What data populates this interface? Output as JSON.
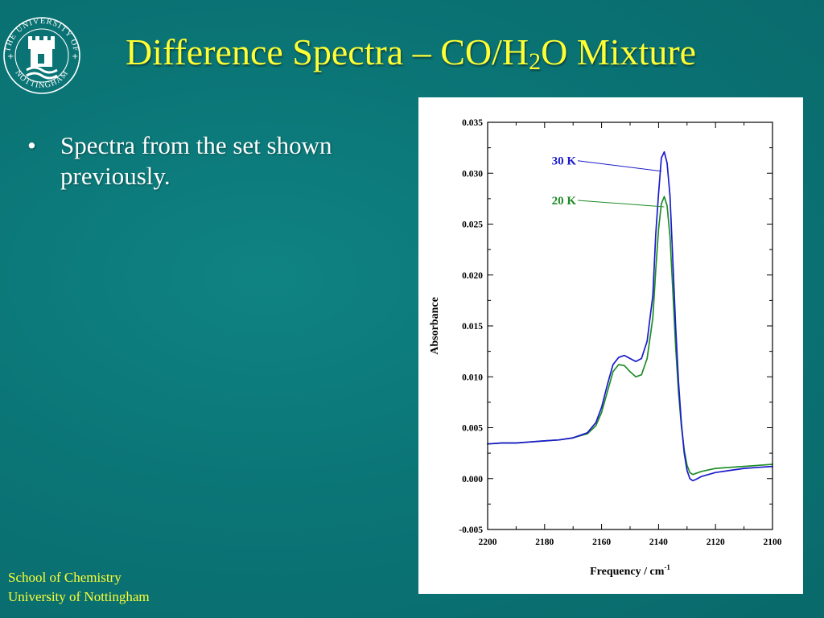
{
  "slide": {
    "title_parts": [
      "Difference Spectra – CO/H",
      "2",
      "O Mixture"
    ],
    "bullets": [
      "Spectra from the set shown previously."
    ],
    "bullet_symbol": "•",
    "footer_lines": [
      "School of Chemistry",
      "University of Nottingham"
    ],
    "logo": {
      "icon": "university-of-nottingham-crest",
      "text": "THE UNIVERSITY OF NOTTINGHAM"
    },
    "colors": {
      "background": "#0b7576",
      "title": "#ffff33",
      "body_text": "#ffffff",
      "footer": "#ffff33"
    }
  },
  "chart_data": {
    "type": "line",
    "title": "",
    "xlabel": "Frequency / cm",
    "xlabel_superscript": "-1",
    "ylabel": "Absorbance",
    "xlim": [
      2200,
      2100
    ],
    "ylim": [
      -0.005,
      0.035
    ],
    "x_reversed": true,
    "x_ticks": [
      2200,
      2180,
      2160,
      2140,
      2120,
      2100
    ],
    "x_tick_labels": [
      "2200",
      "2180",
      "2160",
      "2140",
      "2120",
      "2100"
    ],
    "y_ticks": [
      -0.005,
      0.0,
      0.005,
      0.01,
      0.015,
      0.02,
      0.025,
      0.03,
      0.035
    ],
    "y_tick_labels": [
      "-0.005",
      "0.000",
      "0.005",
      "0.010",
      "0.015",
      "0.020",
      "0.025",
      "0.030",
      "0.035"
    ],
    "grid": false,
    "legend": "annotations with leader lines",
    "series": [
      {
        "name": "30 K",
        "color": "#1a1acc",
        "x": [
          2200,
          2195,
          2190,
          2185,
          2180,
          2175,
          2170,
          2165,
          2162,
          2160,
          2158,
          2156,
          2154,
          2152,
          2150,
          2148,
          2146,
          2144,
          2142,
          2141,
          2140,
          2139,
          2138,
          2137,
          2136,
          2135,
          2134,
          2133,
          2132,
          2131,
          2130,
          2129,
          2128,
          2127,
          2125,
          2120,
          2115,
          2110,
          2105,
          2100
        ],
        "y": [
          0.0034,
          0.0035,
          0.0035,
          0.0036,
          0.0037,
          0.0038,
          0.004,
          0.0045,
          0.0055,
          0.007,
          0.0092,
          0.0112,
          0.0119,
          0.0121,
          0.0118,
          0.0115,
          0.0118,
          0.0135,
          0.018,
          0.024,
          0.028,
          0.0315,
          0.0321,
          0.031,
          0.0278,
          0.0215,
          0.015,
          0.0095,
          0.0055,
          0.0025,
          0.0008,
          0.0,
          -0.0002,
          -0.0001,
          0.0002,
          0.0006,
          0.0008,
          0.001,
          0.0011,
          0.0012
        ]
      },
      {
        "name": "20 K",
        "color": "#1e8c28",
        "x": [
          2200,
          2195,
          2190,
          2185,
          2180,
          2175,
          2170,
          2165,
          2162,
          2160,
          2158,
          2156,
          2154,
          2152,
          2150,
          2148,
          2146,
          2144,
          2142,
          2141,
          2140,
          2139,
          2138,
          2137,
          2136,
          2135,
          2134,
          2133,
          2132,
          2131,
          2130,
          2129,
          2128,
          2127,
          2125,
          2120,
          2115,
          2110,
          2105,
          2100
        ],
        "y": [
          0.0034,
          0.0035,
          0.0035,
          0.0036,
          0.0037,
          0.0038,
          0.004,
          0.0044,
          0.0052,
          0.0065,
          0.0085,
          0.0105,
          0.0112,
          0.0111,
          0.0105,
          0.01,
          0.0102,
          0.0118,
          0.0158,
          0.0205,
          0.0245,
          0.027,
          0.0277,
          0.0268,
          0.0238,
          0.0185,
          0.013,
          0.0085,
          0.0052,
          0.0028,
          0.0013,
          0.0006,
          0.0004,
          0.0005,
          0.0007,
          0.001,
          0.0011,
          0.0012,
          0.0013,
          0.0014
        ]
      }
    ],
    "annotations": [
      {
        "text": "30 K",
        "series": "30 K",
        "color": "#1a1acc",
        "target": {
          "x": 2139,
          "y": 0.0302
        }
      },
      {
        "text": "20 K",
        "series": "20 K",
        "color": "#1e8c28",
        "target": {
          "x": 2138,
          "y": 0.0267
        }
      }
    ]
  }
}
